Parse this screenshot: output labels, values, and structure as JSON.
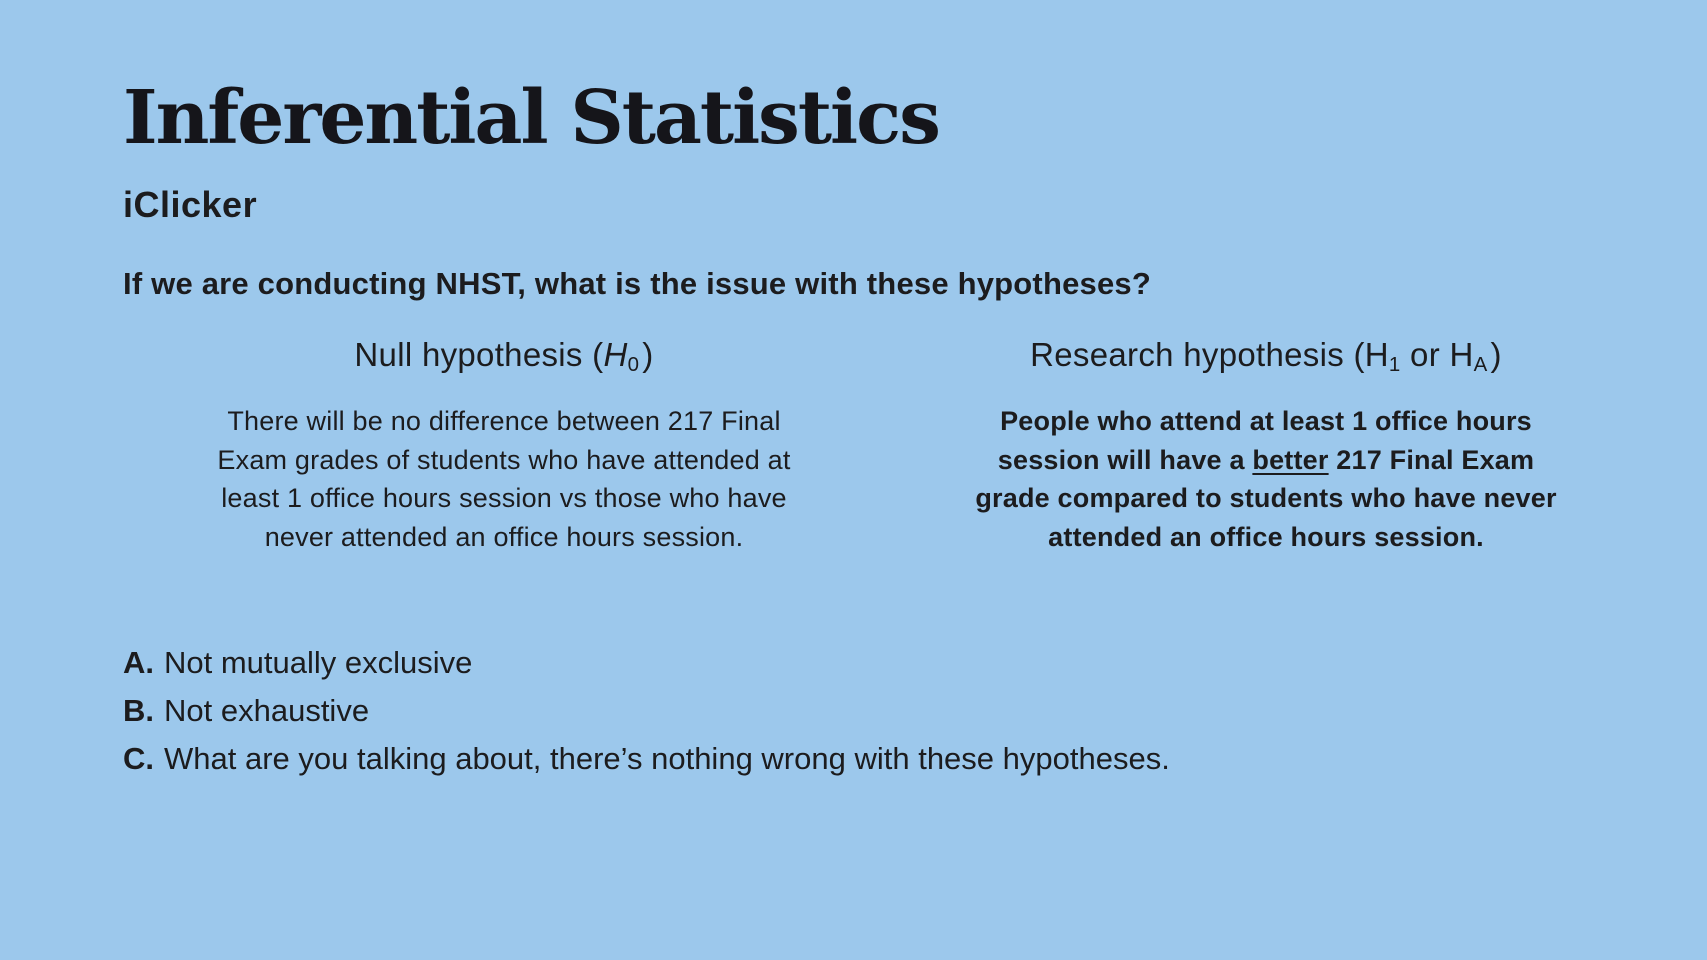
{
  "slide": {
    "title": "Inferential Statistics",
    "subtitle": "iClicker",
    "question": "If we are conducting NHST, what is the issue with these hypotheses?",
    "colors": {
      "background": "#9cc8ec",
      "text": "#1c1c1e"
    },
    "columns": {
      "null": {
        "heading": {
          "prefix": "Null hypothesis (",
          "symbol": "H",
          "subscript": "0",
          "suffix": ")"
        },
        "body": "There will be no difference between 217 Final Exam grades of students who have attended at least 1 office hours session vs those who have never attended an office hours session."
      },
      "research": {
        "heading": {
          "prefix": "Research hypothesis (",
          "symbol1": "H",
          "subscript1": "1",
          "conjunction": " or ",
          "symbol2": "H",
          "subscript2": "A",
          "suffix": ")"
        },
        "body": {
          "pre": "People who attend at least 1 office hours session will have a ",
          "underlined": "better",
          "post": " 217 Final Exam grade compared to students who have never attended an office hours session."
        }
      }
    },
    "choices": [
      {
        "letter": "A.",
        "text": "Not mutually exclusive"
      },
      {
        "letter": "B.",
        "text": "Not exhaustive"
      },
      {
        "letter": "C.",
        "text": "What are you talking about, there’s nothing wrong with these hypotheses."
      }
    ]
  }
}
